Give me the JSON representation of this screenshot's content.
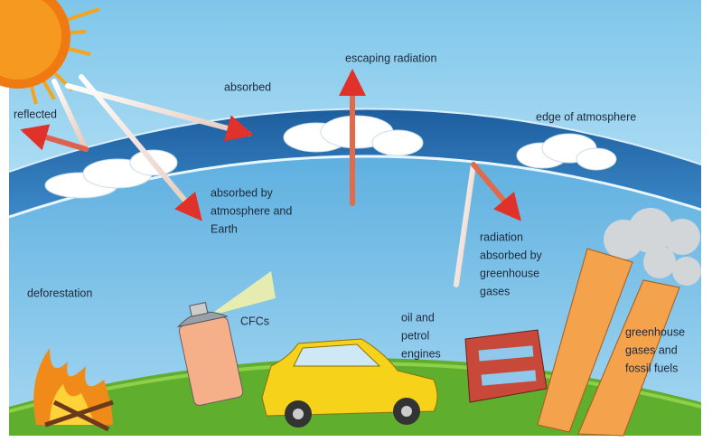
{
  "labels": [
    {
      "lines": [
        "escaping radiation"
      ]
    },
    {
      "lines": [
        "absorbed"
      ]
    },
    {
      "lines": [
        "reflected"
      ]
    },
    {
      "lines": [
        "edge of atmosphere"
      ]
    },
    {
      "lines": [
        "absorbed by",
        "atmosphere and",
        "Earth"
      ]
    },
    {
      "lines": [
        "radiation",
        "absorbed by",
        "greenhouse",
        "gases"
      ]
    },
    {
      "lines": [
        "deforestation"
      ]
    },
    {
      "lines": [
        "CFCs"
      ]
    },
    {
      "lines": [
        "oil and",
        "petrol",
        "engines"
      ]
    },
    {
      "lines": [
        "greenhouse",
        "gases and",
        "fossil fuels"
      ]
    }
  ]
}
